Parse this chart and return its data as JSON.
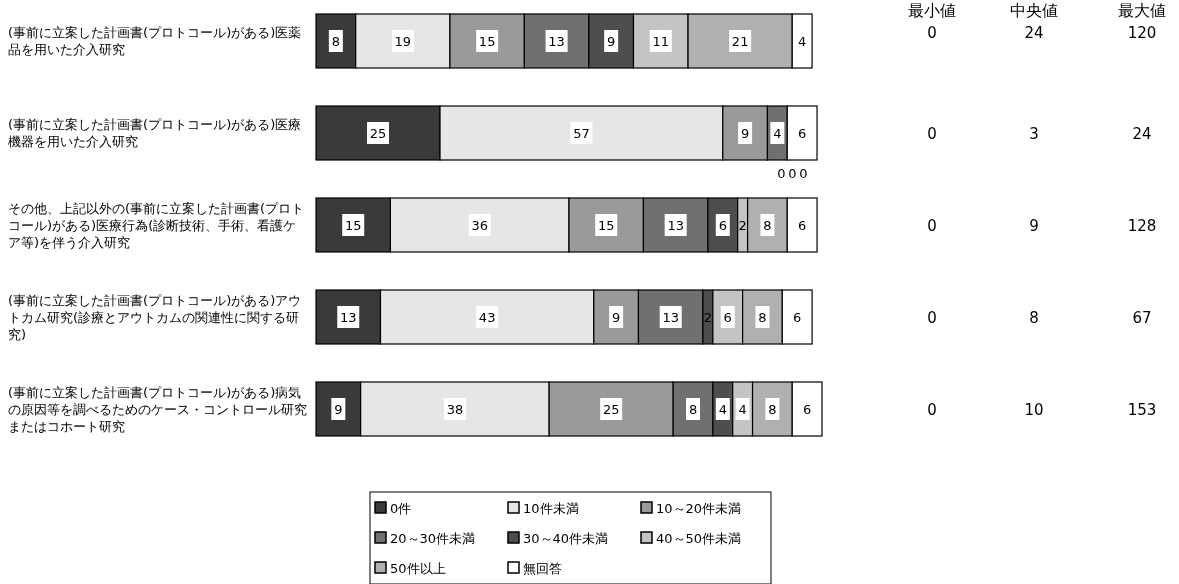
{
  "chart_data": [
    {
      "type": "bar",
      "orientation": "horizontal",
      "stacked": true,
      "data_labels": true,
      "legend": "bottom",
      "categories": [
        "(事前に立案した計画書(プロトコール)がある)医薬品を用いた介入研究",
        "(事前に立案した計画書(プロトコール)がある)医療機器を用いた介入研究",
        "その他、上記以外の(事前に立案した計画書(プロトコール)がある)医療行為(診断技術、手術、看護ケア等)を伴う介入研究",
        "(事前に立案した計画書(プロトコール)がある)アウトカム研究(診療とアウトカムの関連性に関する研究)",
        "(事前に立案した計画書(プロトコール)がある)病気の原因等を調べるためのケース・コントロール研究またはコホート研究"
      ],
      "series": [
        {
          "name": "0件",
          "color": "#3a3a3a",
          "values": [
            8,
            25,
            15,
            13,
            9
          ]
        },
        {
          "name": "10件未満",
          "color": "#e6e6e6",
          "values": [
            19,
            57,
            36,
            43,
            38
          ]
        },
        {
          "name": "10～20件未満",
          "color": "#9a9a9a",
          "values": [
            15,
            9,
            15,
            9,
            25
          ]
        },
        {
          "name": "20～30件未満",
          "color": "#707070",
          "values": [
            13,
            4,
            13,
            13,
            8
          ]
        },
        {
          "name": "30～40件未満",
          "color": "#4e4e4e",
          "values": [
            9,
            0,
            6,
            2,
            4
          ]
        },
        {
          "name": "40～50件未満",
          "color": "#c4c4c4",
          "values": [
            11,
            0,
            2,
            6,
            4
          ]
        },
        {
          "name": "50件以上",
          "color": "#b0b0b0",
          "values": [
            21,
            0,
            8,
            8,
            8
          ]
        },
        {
          "name": "無回答",
          "color": "#ffffff",
          "values": [
            4,
            6,
            6,
            6,
            6
          ]
        }
      ]
    },
    {
      "type": "other",
      "data_labels": true,
      "categories": [
        "最小値",
        "中央値",
        "最大値"
      ],
      "series": [
        {
          "values": [
            0,
            24,
            120
          ]
        },
        {
          "values": [
            0,
            3,
            24
          ]
        },
        {
          "values": [
            0,
            9,
            128
          ]
        },
        {
          "values": [
            0,
            8,
            67
          ]
        },
        {
          "values": [
            0,
            10,
            153
          ]
        }
      ]
    }
  ]
}
